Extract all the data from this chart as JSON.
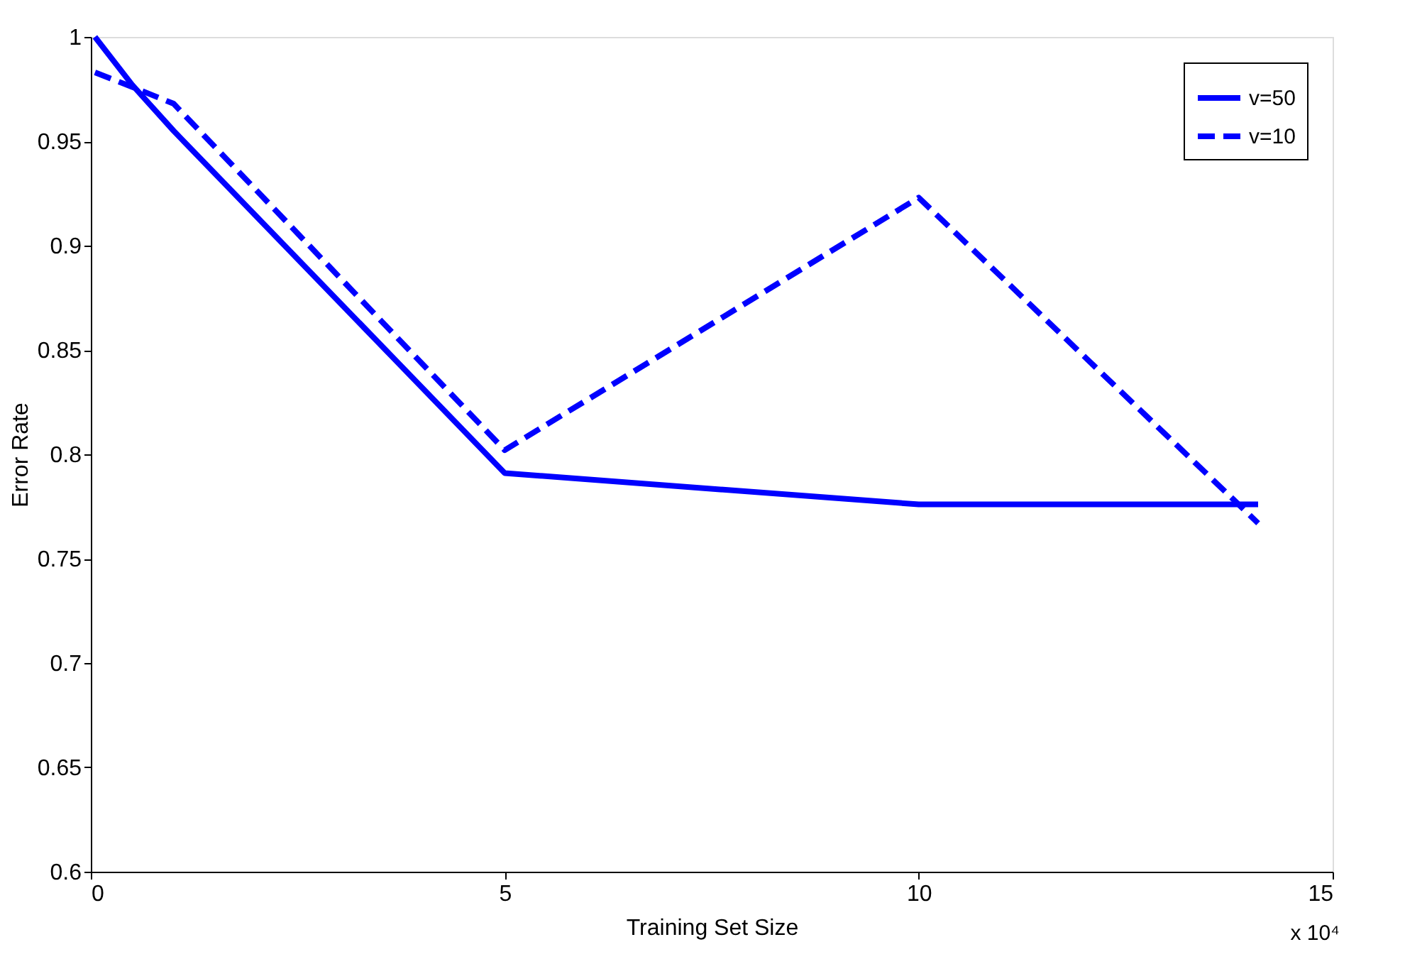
{
  "chart_data": {
    "type": "line",
    "xlabel": "Training Set Size",
    "ylabel": "Error Rate",
    "xlim": [
      0,
      15
    ],
    "xticks": [
      0,
      5,
      10,
      15
    ],
    "ylim": [
      0.6,
      1
    ],
    "yticks": [
      0.6,
      0.65,
      0.7,
      0.75,
      0.8,
      0.85,
      0.9,
      0.95,
      1
    ],
    "annotations": [
      "x 10⁴"
    ],
    "legend": "top right",
    "grid": false,
    "marker": "none",
    "series": [
      {
        "name": "v=50",
        "color": "#0000ff",
        "line_style": "solid",
        "x": [
          0.05,
          0.5,
          1,
          5,
          10,
          14.1
        ],
        "values": [
          1.0,
          0.977,
          0.955,
          0.791,
          0.776,
          0.776
        ]
      },
      {
        "name": "v=10",
        "color": "#0000ff",
        "line_style": "dashed",
        "x": [
          0.05,
          0.5,
          1,
          5,
          10,
          14.1
        ],
        "values": [
          0.983,
          0.976,
          0.968,
          0.802,
          0.923,
          0.767
        ]
      }
    ]
  }
}
